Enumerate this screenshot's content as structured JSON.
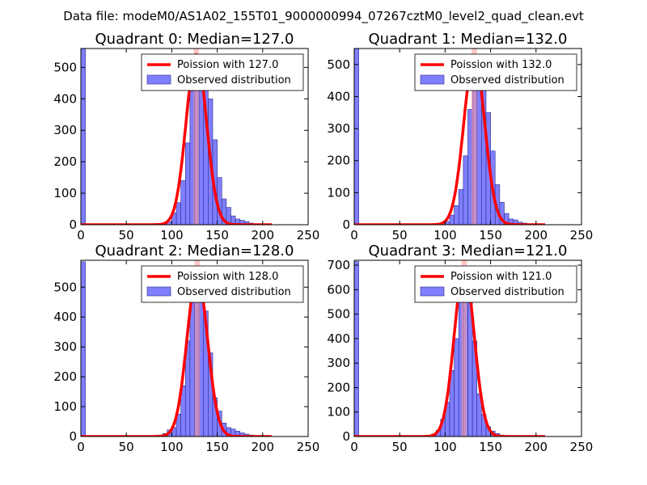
{
  "figure": {
    "suptitle": "Data file: modeM0/AS1A02_155T01_9000000994_07267cztM0_level2_quad_clean.evt"
  },
  "colors": {
    "curve": "#ff0000",
    "bar_fill": "#7f7fff",
    "bar_edge": "#2a2a8a",
    "band": "#ff9a9a"
  },
  "chart_data": [
    {
      "type": "bar",
      "title": "Quadrant 0: Median=127.0",
      "median": 127.0,
      "legend": [
        "Poission with 127.0",
        "Observed distribution"
      ],
      "xlim": [
        0,
        250
      ],
      "ylim": [
        0,
        560
      ],
      "xticks": [
        0,
        50,
        100,
        150,
        200,
        250
      ],
      "yticks": [
        0,
        100,
        200,
        300,
        400,
        500
      ],
      "bin_width": 5,
      "spike_bin": {
        "x": 0,
        "value": 560
      },
      "bins_start": 70,
      "values": [
        2,
        3,
        3,
        3,
        5,
        10,
        38,
        70,
        140,
        260,
        425,
        470,
        530,
        470,
        400,
        270,
        150,
        82,
        55,
        28,
        18,
        14,
        10,
        5,
        3,
        2
      ],
      "poisson_peak": 540
    },
    {
      "type": "bar",
      "title": "Quadrant 1: Median=132.0",
      "median": 132.0,
      "legend": [
        "Poission with 132.0",
        "Observed distribution"
      ],
      "xlim": [
        0,
        250
      ],
      "ylim": [
        0,
        550
      ],
      "xticks": [
        0,
        50,
        100,
        150,
        200,
        250
      ],
      "yticks": [
        0,
        100,
        200,
        300,
        400,
        500
      ],
      "bin_width": 5,
      "spike_bin": {
        "x": 0,
        "value": 550
      },
      "bins_start": 75,
      "values": [
        2,
        3,
        3,
        3,
        5,
        10,
        30,
        60,
        110,
        215,
        360,
        435,
        500,
        480,
        350,
        230,
        125,
        70,
        35,
        18,
        15,
        8,
        5,
        3,
        2
      ],
      "poisson_peak": 525
    },
    {
      "type": "bar",
      "title": "Quadrant 2: Median=128.0",
      "median": 128.0,
      "legend": [
        "Poission with 128.0",
        "Observed distribution"
      ],
      "xlim": [
        0,
        250
      ],
      "ylim": [
        0,
        590
      ],
      "xticks": [
        0,
        50,
        100,
        150,
        200,
        250
      ],
      "yticks": [
        0,
        100,
        200,
        300,
        400,
        500
      ],
      "bin_width": 5,
      "spike_bin": {
        "x": 0,
        "value": 585
      },
      "bins_start": 65,
      "values": [
        2,
        2,
        3,
        3,
        5,
        10,
        22,
        30,
        75,
        170,
        320,
        470,
        540,
        480,
        420,
        280,
        130,
        85,
        45,
        30,
        25,
        18,
        12,
        8,
        5,
        3,
        2
      ],
      "poisson_peak": 540
    },
    {
      "type": "bar",
      "title": "Quadrant 3: Median=121.0",
      "median": 121.0,
      "legend": [
        "Poission with 121.0",
        "Observed distribution"
      ],
      "xlim": [
        0,
        250
      ],
      "ylim": [
        0,
        720
      ],
      "xticks": [
        0,
        50,
        100,
        150,
        200,
        250
      ],
      "yticks": [
        0,
        100,
        200,
        300,
        400,
        500,
        600,
        700
      ],
      "bin_width": 5,
      "spike_bin": {
        "x": 0,
        "value": 715
      },
      "bins_start": 70,
      "values": [
        2,
        3,
        5,
        10,
        25,
        70,
        140,
        270,
        400,
        570,
        650,
        550,
        390,
        175,
        90,
        40,
        22,
        12,
        6,
        4,
        3,
        2
      ],
      "poisson_peak": 685
    }
  ]
}
